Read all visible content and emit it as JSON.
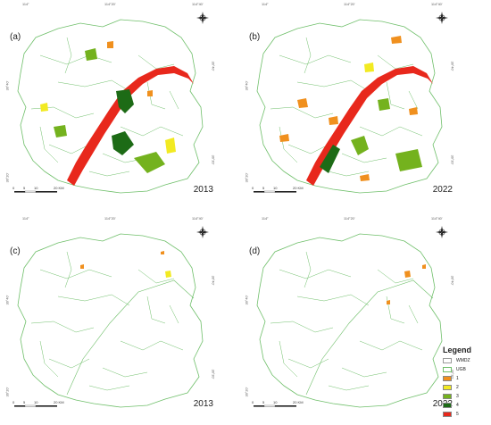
{
  "panels": [
    {
      "label": "(a)",
      "year": "2013"
    },
    {
      "label": "(b)",
      "year": "2022"
    },
    {
      "label": "(c)",
      "year": "2013"
    },
    {
      "label": "(d)",
      "year": "2022"
    }
  ],
  "ticks": {
    "top": [
      "114°",
      "114°20'",
      "114°40'"
    ],
    "left": [
      "30°40'",
      "30°20'"
    ],
    "right": [
      "30°40'",
      "30°20'"
    ]
  },
  "scale": [
    "0",
    "5",
    "10",
    "20 KM"
  ],
  "legend": {
    "title": "Legend",
    "items": [
      {
        "label": "WMDZ",
        "color": "#ffffff"
      },
      {
        "label": "UGB",
        "color": "#ffffff"
      },
      {
        "label": "1",
        "color": "#f0901e"
      },
      {
        "label": "2",
        "color": "#f2ea22"
      },
      {
        "label": "3",
        "color": "#74b21e"
      },
      {
        "label": "4",
        "color": "#1d6b16"
      },
      {
        "label": "5",
        "color": "#e8281c"
      }
    ]
  },
  "colors": {
    "boundary": "#6fbf6a",
    "river": "#e8281c",
    "class1": "#f0901e",
    "class2": "#f2ea22",
    "class3": "#74b21e",
    "class4": "#1d6b16"
  }
}
